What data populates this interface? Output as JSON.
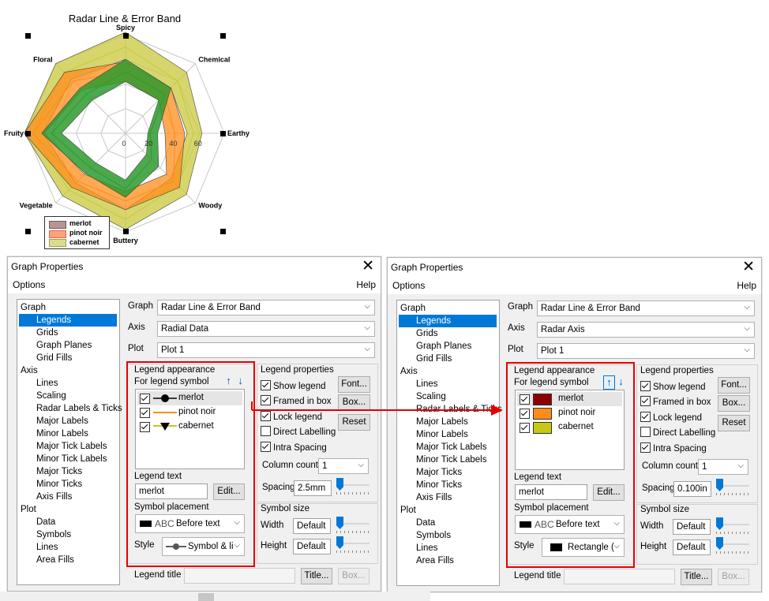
{
  "chart": {
    "title": "Radar Line & Error Band",
    "axes": [
      "Spicy",
      "Chemical",
      "Earthy",
      "Woody",
      "Buttery",
      "Vegetable",
      "Fruity",
      "Floral"
    ],
    "tick_labels": [
      "0",
      "20",
      "40",
      "60"
    ],
    "legend": [
      "merlot",
      "pinot noir",
      "cabernet"
    ]
  },
  "chart_data": {
    "type": "radar",
    "title": "Radar Line & Error Band",
    "axes": [
      "Spicy",
      "Chemical",
      "Earthy",
      "Woody",
      "Buttery",
      "Vegetable",
      "Fruity",
      "Floral"
    ],
    "rlim": [
      0,
      80
    ],
    "ticks": [
      0,
      20,
      40,
      60
    ],
    "series": [
      {
        "name": "merlot",
        "color": "#9a6f6f",
        "values": [
          50,
          45,
          20,
          30,
          45,
          40,
          60,
          45
        ],
        "band_low": [
          42,
          38,
          18,
          24,
          38,
          34,
          52,
          38
        ],
        "band_high": [
          60,
          52,
          26,
          38,
          52,
          46,
          68,
          52
        ]
      },
      {
        "name": "pinot noir",
        "color": "#ff9a55",
        "values": [
          50,
          45,
          40,
          55,
          55,
          55,
          75,
          60
        ],
        "band_low": [
          42,
          38,
          32,
          47,
          47,
          47,
          66,
          50
        ],
        "band_high": [
          58,
          52,
          48,
          62,
          62,
          62,
          82,
          70
        ]
      },
      {
        "name": "cabernet",
        "color": "#c8c83c",
        "values": [
          70,
          60,
          55,
          60,
          70,
          65,
          75,
          70
        ],
        "band_low": [
          60,
          52,
          50,
          52,
          62,
          57,
          67,
          62
        ],
        "band_high": [
          82,
          70,
          62,
          70,
          78,
          72,
          82,
          80
        ]
      }
    ]
  },
  "dialog_left": {
    "title": "Graph Properties",
    "menu_options": "Options",
    "menu_help": "Help",
    "tree": [
      {
        "label": "Graph",
        "level": 0
      },
      {
        "label": "Legends",
        "level": 1,
        "selected": true
      },
      {
        "label": "Grids",
        "level": 1
      },
      {
        "label": "Graph Planes",
        "level": 1
      },
      {
        "label": "Grid Fills",
        "level": 1
      },
      {
        "label": "Axis",
        "level": 0
      },
      {
        "label": "Lines",
        "level": 1
      },
      {
        "label": "Scaling",
        "level": 1
      },
      {
        "label": "Radar Labels & Ticks",
        "level": 1
      },
      {
        "label": "Major Labels",
        "level": 1
      },
      {
        "label": "Minor Labels",
        "level": 1
      },
      {
        "label": "Major Tick Labels",
        "level": 1
      },
      {
        "label": "Minor Tick Labels",
        "level": 1
      },
      {
        "label": "Major Ticks",
        "level": 1
      },
      {
        "label": "Minor Ticks",
        "level": 1
      },
      {
        "label": "Axis Fills",
        "level": 1
      },
      {
        "label": "Plot",
        "level": 0
      },
      {
        "label": "Data",
        "level": 1
      },
      {
        "label": "Symbols",
        "level": 1
      },
      {
        "label": "Lines",
        "level": 1
      },
      {
        "label": "Area Fills",
        "level": 1
      }
    ],
    "graph_label": "Graph",
    "graph_value": "Radar Line & Error Band",
    "axis_label": "Axis",
    "axis_value": "Radial Data",
    "plot_label": "Plot",
    "plot_value": "Plot 1",
    "legend_appearance": "Legend appearance",
    "for_legend_symbol": "For legend symbol",
    "legend_items": [
      "merlot",
      "pinot noir",
      "cabernet"
    ],
    "legend_text_label": "Legend text",
    "legend_text_value": "merlot",
    "edit_button": "Edit...",
    "symbol_placement_label": "Symbol placement",
    "symbol_placement_value": "Before text",
    "style_label": "Style",
    "style_value": "Symbol & li",
    "legend_properties": "Legend properties",
    "show_legend": "Show legend",
    "framed_in_box": "Framed in box",
    "lock_legend": "Lock legend",
    "direct_labelling": "Direct Labelling",
    "intra_spacing": "Intra Spacing",
    "font_button": "Font...",
    "box_button": "Box...",
    "reset_button": "Reset",
    "column_count_label": "Column count",
    "column_count_value": "1",
    "spacing_label": "Spacing",
    "spacing_value": "2.5mm",
    "symbol_size": "Symbol size",
    "width_label": "Width",
    "width_value": "Default",
    "height_label": "Height",
    "height_value": "Default",
    "legend_title_label": "Legend title",
    "title_button": "Title...",
    "box2_button": "Box..."
  },
  "dialog_right": {
    "title": "Graph Properties",
    "menu_options": "Options",
    "menu_help": "Help",
    "tree": [
      {
        "label": "Graph",
        "level": 0
      },
      {
        "label": "Legends",
        "level": 1,
        "selected": true
      },
      {
        "label": "Grids",
        "level": 1
      },
      {
        "label": "Graph Planes",
        "level": 1
      },
      {
        "label": "Grid Fills",
        "level": 1
      },
      {
        "label": "Axis",
        "level": 0
      },
      {
        "label": "Lines",
        "level": 1
      },
      {
        "label": "Scaling",
        "level": 1
      },
      {
        "label": "Radar Labels & Ticks",
        "level": 1
      },
      {
        "label": "Major Labels",
        "level": 1
      },
      {
        "label": "Minor Labels",
        "level": 1
      },
      {
        "label": "Major Tick Labels",
        "level": 1
      },
      {
        "label": "Minor Tick Labels",
        "level": 1
      },
      {
        "label": "Major Ticks",
        "level": 1
      },
      {
        "label": "Minor Ticks",
        "level": 1
      },
      {
        "label": "Axis Fills",
        "level": 1
      },
      {
        "label": "Plot",
        "level": 0
      },
      {
        "label": "Data",
        "level": 1
      },
      {
        "label": "Symbols",
        "level": 1
      },
      {
        "label": "Lines",
        "level": 1
      },
      {
        "label": "Area Fills",
        "level": 1
      }
    ],
    "graph_label": "Graph",
    "graph_value": "Radar Line & Error Band",
    "axis_label": "Axis",
    "axis_value": "Radar Axis",
    "plot_label": "Plot",
    "plot_value": "Plot 1",
    "legend_appearance": "Legend appearance",
    "for_legend_symbol": "For legend symbol",
    "legend_items": [
      "merlot",
      "pinot noir",
      "cabernet"
    ],
    "legend_text_label": "Legend text",
    "legend_text_value": "merlot",
    "edit_button": "Edit...",
    "symbol_placement_label": "Symbol placement",
    "symbol_placement_value": "Before text",
    "style_label": "Style",
    "style_value": "Rectangle (",
    "legend_properties": "Legend properties",
    "show_legend": "Show legend",
    "framed_in_box": "Framed in box",
    "lock_legend": "Lock legend",
    "direct_labelling": "Direct Labelling",
    "intra_spacing": "Intra Spacing",
    "font_button": "Font...",
    "box_button": "Box...",
    "reset_button": "Reset",
    "column_count_label": "Column count",
    "column_count_value": "1",
    "spacing_label": "Spacing",
    "spacing_value": "0.100in",
    "symbol_size": "Symbol size",
    "width_label": "Width",
    "width_value": "Default",
    "height_label": "Height",
    "height_value": "Default",
    "legend_title_label": "Legend title",
    "title_button": "Title...",
    "box2_button": "Box..."
  },
  "symbol_abc": "ABC",
  "colors": {
    "merlot": "#8b0000",
    "pinot_noir": "#ff8c1a",
    "cabernet": "#c8c814",
    "radar_green": "#2e9a2e",
    "highlight": "#e60000",
    "selection": "#0078d7"
  }
}
